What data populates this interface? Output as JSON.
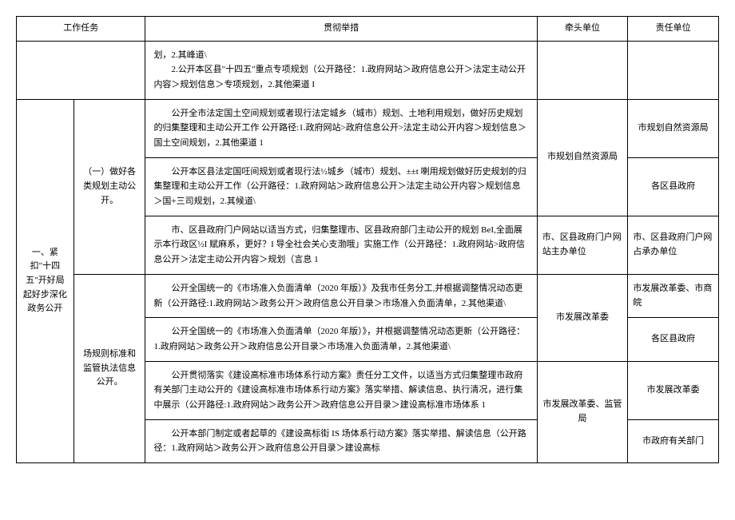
{
  "headers": {
    "col1": "工作任务",
    "col3": "贯彻举措",
    "col4": "牵头单位",
    "col5": "责任单位"
  },
  "rows": {
    "r0_measure": "划，2.其峰道\\\n        2.公开本区县\"十四五\"重点专项规划（公开路径：1.政府网站＞政府信息公开＞法定主动公开内容＞规划信息＞专项规划，2.其他渠道 I",
    "r1": {
      "task_group": "一、紧扣\"十四五\"开好局起好步深化政务公开",
      "subtask1": "（一）做好各类规划主动公开。",
      "measure": "        公开全市法定国土空间规划或者现行法定城乡（城市）规划、土地利用规划，做好历史规划的归集整理和主动公开工作 公开路径:1.政府网站>政府信息公开>法定主动公开内容＞规划信息＞国土空间规划，2.其他渠道 1",
      "lead": "市规划自然资源局",
      "resp": "市规划自然资源局"
    },
    "r2": {
      "measure": "        公开本区县法定国㕵间规划或者现行法½城乡（城市）规划、±±t 喇用规划做好历史规划的归集整理和主动公开工作（公开路径：1.政府网站＞政府信息公开＞法定主动公开内容＞规划信息＞国+三司规划，2.其候道\\",
      "resp": "各区县政府"
    },
    "r3": {
      "measure": "        市、区县政府门户网站以适当方式，归集整理市、区县政府部门主动公开的规划 BeI,全面展示本行政区½I 赋麻系，更好？I 导全社会关心支渤哦」实施工作（公开路径：1.政府网站>政府信息公开＞法定主动公开内容＞规划（言息 1",
      "lead": "市、区县政府门户网站主办单位",
      "resp": "市、区县政府门户网占承办单位"
    },
    "r4": {
      "subtask2": "场规则标准和监管执法信息公开。",
      "measure": "        公开全国统一的《市场准入负面清单（2020 年版）》及我市任务分工,并根据调整情况动态更新（公开路径:1.政府网站＞政务公开＞政府信息公开目录＞市场准入负面清单，2.其他渠道\\",
      "lead": "市发展改革委",
      "resp": "市发展改革委、市商皖"
    },
    "r5": {
      "measure": "        公开全国统一的《市场准入负面清单（2020 年版）》，并根据调整情况动态更新（公开路径：1.政府网站＞政务公开＞政府信息公开目录＞市场准入负面清单，2.其他渠道\\",
      "resp": "各区县政府"
    },
    "r6": {
      "measure": "        公开贯彻落实《建设高标准市场体系行动方案》责任分工文件，以适当方式归集整理市政府有关部门主动公开的《建设高标准市场体系行动方案》落实举措、解读信息、执行清况，进行集中展示（公开路径:1.政府网站＞政务公开＞政府信息公开目录＞建设高标准市场体系 1",
      "lead": "市发展改革委、监管局",
      "resp": "市发展改革委"
    },
    "r7": {
      "measure": "        公开本部门制定或者起草的《建设高标街 IS 场体系行动方案》落实举措、解读信息（公开路径：1.政府网站＞政务公开＞政府信息公开目录＞建设高标",
      "resp": "市政府有关部门"
    }
  }
}
